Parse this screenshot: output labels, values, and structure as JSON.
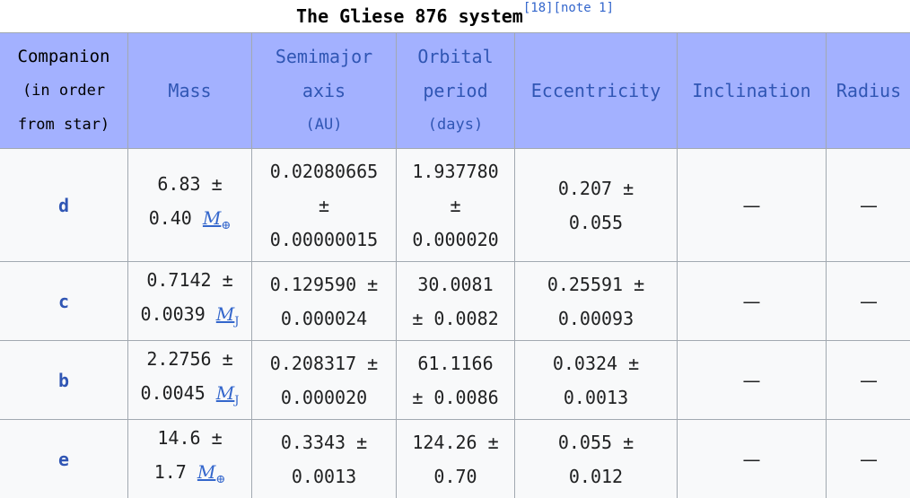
{
  "caption": {
    "title": "The Gliese 876 system",
    "ref1": "[18]",
    "ref2": "[note 1]"
  },
  "headers": {
    "companion": {
      "line1": "Companion",
      "line2": "(in order",
      "line3": "from star)"
    },
    "mass": "Mass",
    "semimajor": {
      "line1": "Semimajor",
      "line2": "axis",
      "unit": "AU"
    },
    "period": {
      "line1": "Orbital",
      "line2": "period",
      "unit": "days"
    },
    "eccentricity": "Eccentricity",
    "inclination": "Inclination",
    "radius": "Radius"
  },
  "rows": [
    {
      "companion": "d",
      "mass_a": "6.83 ±",
      "mass_b": "0.40",
      "mass_unit": "M",
      "mass_unit_sub": "⊕",
      "axis_a": "0.02080665",
      "axis_b": "±",
      "axis_c": "0.00000015",
      "period_a": "1.937780",
      "period_b": "±",
      "period_c": "0.000020",
      "ecc_a": "0.207 ±",
      "ecc_b": "0.055",
      "inclination": "—",
      "radius": "—"
    },
    {
      "companion": "c",
      "mass_a": "0.7142 ±",
      "mass_b": "0.0039",
      "mass_unit": "M",
      "mass_unit_sub": "J",
      "axis_a": "0.129590 ±",
      "axis_b": "0.000024",
      "period_a": "30.0081",
      "period_b": "± 0.0082",
      "ecc_a": "0.25591 ±",
      "ecc_b": "0.00093",
      "inclination": "—",
      "radius": "—"
    },
    {
      "companion": "b",
      "mass_a": "2.2756 ±",
      "mass_b": "0.0045",
      "mass_unit": "M",
      "mass_unit_sub": "J",
      "axis_a": "0.208317 ±",
      "axis_b": "0.000020",
      "period_a": "61.1166",
      "period_b": "± 0.0086",
      "ecc_a": "0.0324 ±",
      "ecc_b": "0.0013",
      "inclination": "—",
      "radius": "—"
    },
    {
      "companion": "e",
      "mass_a": "14.6 ±",
      "mass_b": "1.7",
      "mass_unit": "M",
      "mass_unit_sub": "⊕",
      "axis_a": "0.3343 ±",
      "axis_b": "0.0013",
      "period_a": "124.26 ±",
      "period_b": "0.70",
      "ecc_a": "0.055 ±",
      "ecc_b": "0.012",
      "inclination": "—",
      "radius": "—"
    }
  ]
}
